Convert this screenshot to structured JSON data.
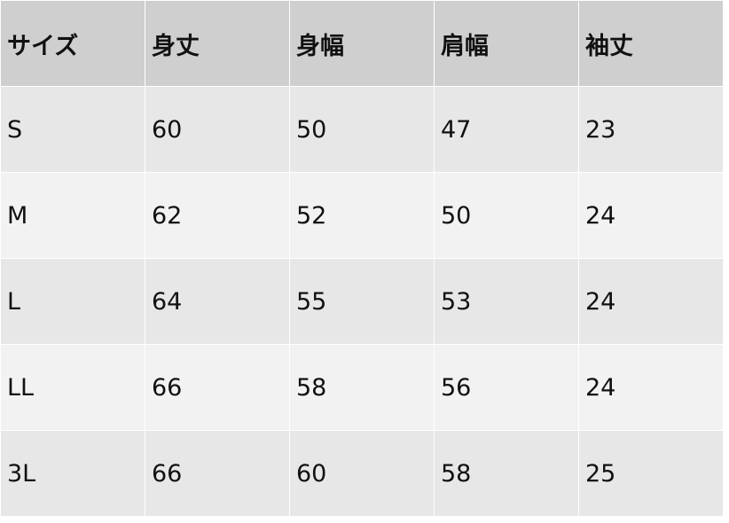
{
  "table": {
    "headers": [
      "サイズ",
      "身丈",
      "身幅",
      "肩幅",
      "袖丈"
    ],
    "rows": [
      [
        "S",
        "60",
        "50",
        "47",
        "23"
      ],
      [
        "M",
        "62",
        "52",
        "50",
        "24"
      ],
      [
        "L",
        "64",
        "55",
        "53",
        "24"
      ],
      [
        "LL",
        "66",
        "58",
        "56",
        "24"
      ],
      [
        "3L",
        "66",
        "60",
        "58",
        "25"
      ]
    ]
  },
  "colors": {
    "header_bg": "#cfcfcf",
    "row_odd_bg": "#e7e7e7",
    "row_even_bg": "#f2f2f2",
    "border": "#ffffff"
  }
}
